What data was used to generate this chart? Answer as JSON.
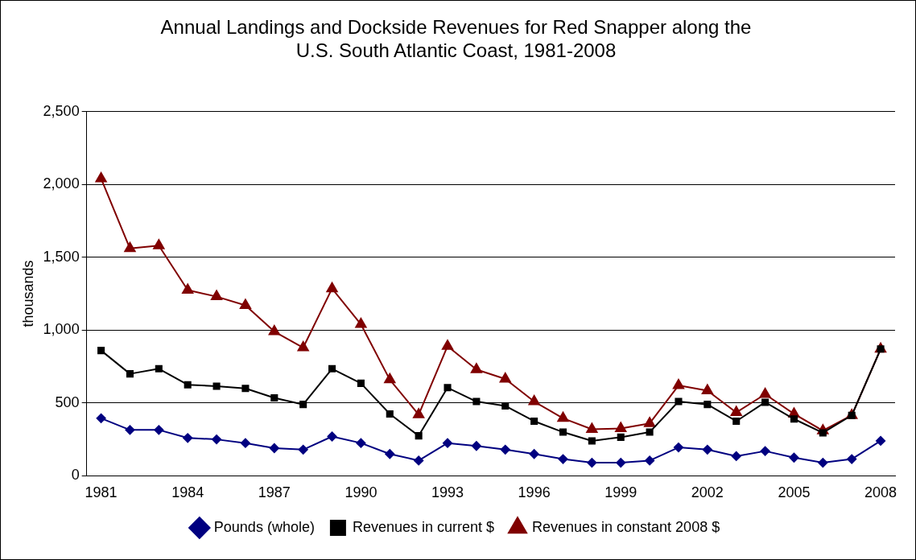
{
  "chart_data": {
    "type": "line",
    "title": [
      "Annual Landings and Dockside Revenues for Red Snapper along the",
      "U.S. South Atlantic Coast, 1981-2008"
    ],
    "ylabel": "thousands",
    "categories": [
      "1981",
      null,
      null,
      "1984",
      null,
      null,
      "1987",
      null,
      null,
      "1990",
      null,
      null,
      "1993",
      null,
      null,
      "1996",
      null,
      null,
      "1999",
      null,
      null,
      "2002",
      null,
      null,
      "2005",
      null,
      null,
      "2008"
    ],
    "series": [
      {
        "name": "Pounds (whole)",
        "color": "#000080",
        "marker": "diamond",
        "values": [
          395,
          315,
          315,
          260,
          250,
          225,
          190,
          180,
          270,
          225,
          150,
          105,
          225,
          205,
          180,
          150,
          115,
          90,
          90,
          105,
          195,
          180,
          135,
          170,
          125,
          90,
          115,
          240
        ]
      },
      {
        "name": "Revenues in current $",
        "color": "#000000",
        "marker": "square",
        "values": [
          860,
          700,
          735,
          625,
          615,
          600,
          535,
          490,
          735,
          635,
          425,
          275,
          605,
          510,
          480,
          375,
          300,
          240,
          265,
          300,
          510,
          490,
          375,
          505,
          390,
          295,
          415,
          870
        ]
      },
      {
        "name": "Revenues in constant 2008 $",
        "color": "#800000",
        "marker": "triangle",
        "values": [
          2040,
          1560,
          1580,
          1275,
          1230,
          1170,
          990,
          880,
          1285,
          1040,
          660,
          420,
          890,
          730,
          665,
          510,
          395,
          320,
          325,
          360,
          620,
          585,
          435,
          560,
          425,
          310,
          415,
          870
        ]
      }
    ],
    "ylim": [
      0,
      2500
    ],
    "yticks": [
      0,
      500,
      {
        "value": 1000,
        "label": "1,000"
      },
      {
        "value": 1500,
        "label": "1,500"
      },
      {
        "value": 2000,
        "label": "2,000"
      },
      {
        "value": 2500,
        "label": "2,500"
      }
    ],
    "grid": "y",
    "legend": "bottom",
    "line_style": "solid"
  }
}
